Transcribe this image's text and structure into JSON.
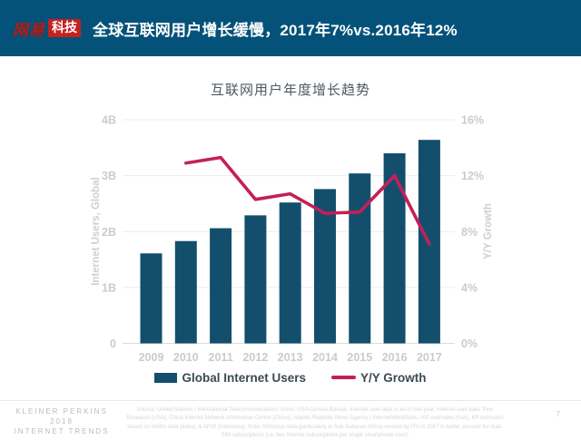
{
  "header": {
    "logo_brand": "网易",
    "logo_sub": "科技",
    "title": "全球互联网用户增长缓慢，2017年7%vs.2016年12%"
  },
  "chart_data": {
    "type": "bar",
    "title": "互联网用户年度增长趋势",
    "categories": [
      "2009",
      "2010",
      "2011",
      "2012",
      "2013",
      "2014",
      "2015",
      "2016",
      "2017"
    ],
    "series": [
      {
        "name": "Global Internet Users",
        "type": "bar",
        "unit": "B",
        "values": [
          1.61,
          1.83,
          2.06,
          2.29,
          2.52,
          2.76,
          3.04,
          3.4,
          3.64
        ]
      },
      {
        "name": "Y/Y Growth",
        "type": "line",
        "unit": "%",
        "start_category": "2010",
        "values": [
          12.9,
          13.3,
          10.3,
          10.7,
          9.3,
          9.4,
          12.0,
          7.1
        ]
      }
    ],
    "left_axis": {
      "label": "Internet Users, Global",
      "ticks": [
        "0",
        "1B",
        "2B",
        "3B",
        "4B"
      ],
      "range": [
        0,
        4
      ]
    },
    "right_axis": {
      "label": "Y/Y Growth",
      "ticks": [
        "0%",
        "4%",
        "8%",
        "12%",
        "16%"
      ],
      "range": [
        0,
        16
      ]
    },
    "grid": true,
    "legend_position": "bottom",
    "legend": [
      {
        "label": "Global Internet Users",
        "color": "#134f6d",
        "marker": "rect"
      },
      {
        "label": "Y/Y Growth",
        "color": "#c32058",
        "marker": "line"
      }
    ]
  },
  "footer": {
    "brand_line1": "KLEINER PERKINS",
    "brand_line2": "2018",
    "brand_line3": "INTERNET TRENDS",
    "source": "Source: United Nations / International Telecommunications Union, USA Census Bureau. Internet user data is as of mid-year. Internet user data: Pew Research (USA), China Internet Network Information Center (China), Islamic Republic News Agency / InternetWorldStats / KP estimates (Iran), KP estimates based on IAMAI data (India), & APJII (Indonesia). Note: Historical data (particularly in Sub-Saharan Africa) revised by ITU in 2017 to better account for dual-SIM subscriptions (i.e. two Internet subscriptions per single smartphone user).",
    "page_number": "7"
  },
  "colors": {
    "header_bg": "#045279",
    "logo_red": "#c4211f",
    "bar": "#134f6d",
    "line": "#c32058",
    "grid": "#ececec",
    "axis_text": "#c8ccce"
  }
}
